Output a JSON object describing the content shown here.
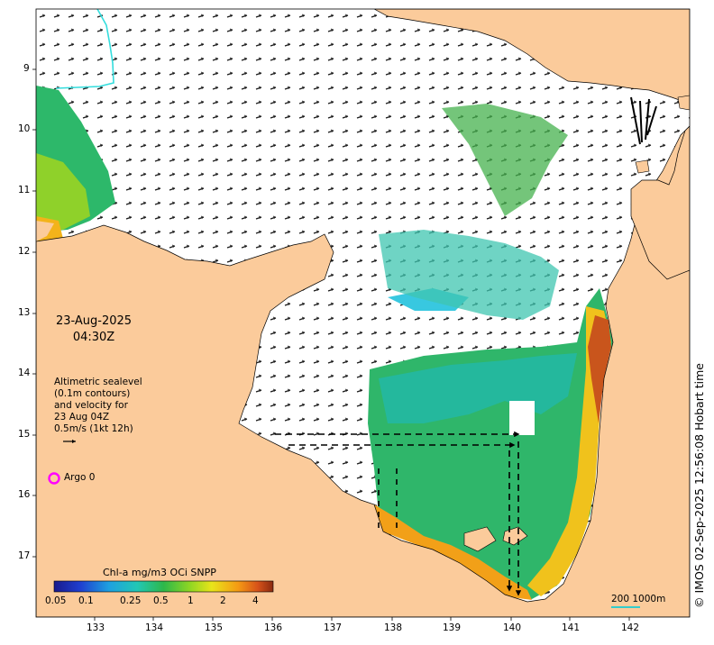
{
  "map": {
    "date": "23-Aug-2025",
    "time": "04:30Z",
    "legend_lines": [
      "Altimetric sealevel",
      "(0.1m contours)",
      "and velocity for",
      "23 Aug 04Z",
      "0.5m/s (1kt 12h)"
    ],
    "argo_label": "Argo 0",
    "colorbar_title": "Chl-a mg/m3 OCi SNPP",
    "colorbar_ticks": [
      "0.05",
      "0.1",
      "0.25",
      "0.5",
      "1",
      "2",
      "4"
    ],
    "scale_label": "200  1000m",
    "credit": "© IMOS 02-Sep-2025 12:56:08 Hobart time",
    "lat_ticks": [
      "9",
      "10",
      "11",
      "12",
      "13",
      "14",
      "15",
      "16",
      "17"
    ],
    "lon_ticks": [
      "133",
      "134",
      "135",
      "136",
      "137",
      "138",
      "139",
      "140",
      "141",
      "142"
    ],
    "colors": {
      "land": "#fbcb9b",
      "ocean": "#ffffff",
      "argo": "#ff00ff",
      "river": "#33dddd"
    }
  }
}
